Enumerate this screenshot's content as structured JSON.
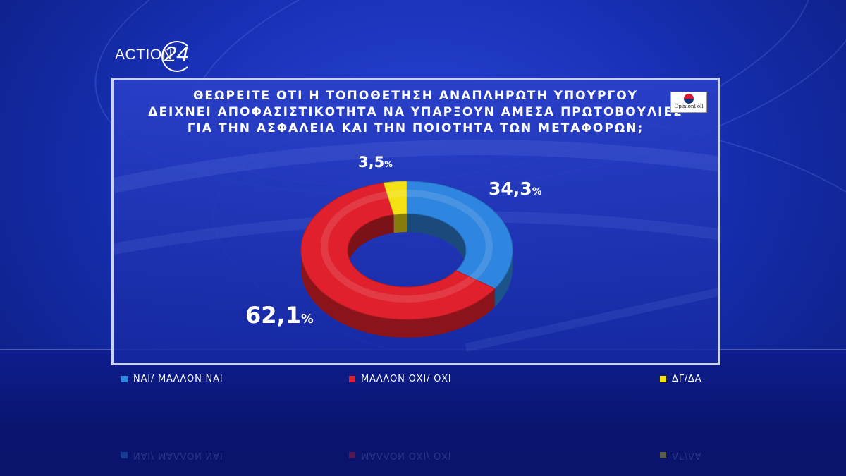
{
  "channel": {
    "logo_text": "ACTION",
    "logo_number": "24"
  },
  "poll_brand": {
    "text": "OpinionPoll"
  },
  "chart_data": {
    "type": "pie",
    "donut": true,
    "title_lines": [
      "ΘΕΩΡΕΙΤΕ ΟΤΙ Η ΤΟΠΟΘΕΤΗΣΗ ΑΝΑΠΛΗΡΩΤΗ ΥΠΟΥΡΓΟΥ",
      "ΔΕΙΧΝΕΙ ΑΠΟΦΑΣΙΣΤΙΚΟΤΗΤΑ ΝΑ ΥΠΑΡΞΟΥΝ ΑΜΕΣΑ ΠΡΩΤΟΒΟΥΛΙΕΣ",
      "ΓΙΑ ΤΗΝ ΑΣΦΑΛΕΙΑ ΚΑΙ ΤΗΝ ΠΟΙΟΤΗΤΑ ΤΩΝ ΜΕΤΑΦΟΡΩΝ;"
    ],
    "slices": [
      {
        "label": "ΝΑΙ/ ΜΑΛΛΟΝ ΝΑΙ",
        "value": 34.3,
        "display": "34,3",
        "color": "#2f86e0"
      },
      {
        "label": "ΜΑΛΛΟΝ ΟΧΙ/ ΟΧΙ",
        "value": 62.1,
        "display": "62,1",
        "color": "#e0202c"
      },
      {
        "label": "ΔΓ/ΔΑ",
        "value": 3.5,
        "display": "3,5",
        "color": "#f4e214"
      }
    ],
    "unit": "%",
    "legend_position": "bottom"
  }
}
